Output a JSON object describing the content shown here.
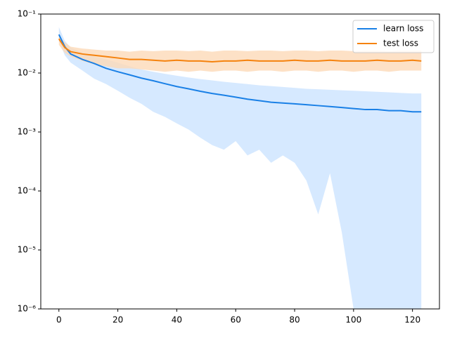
{
  "chart_data": {
    "type": "line",
    "x": [
      0,
      2,
      4,
      8,
      12,
      16,
      20,
      24,
      28,
      32,
      36,
      40,
      44,
      48,
      52,
      56,
      60,
      64,
      68,
      72,
      76,
      80,
      84,
      88,
      92,
      96,
      100,
      104,
      108,
      112,
      116,
      120,
      123
    ],
    "series": [
      {
        "name": "learn loss",
        "color": "#1a80e6",
        "band_color": "#cce4ff",
        "values": [
          0.045,
          0.028,
          0.021,
          0.017,
          0.0145,
          0.012,
          0.0105,
          0.0093,
          0.0082,
          0.0074,
          0.0066,
          0.0059,
          0.0054,
          0.0049,
          0.0045,
          0.0042,
          0.0039,
          0.0036,
          0.0034,
          0.0032,
          0.0031,
          0.003,
          0.0029,
          0.0028,
          0.0027,
          0.0026,
          0.0025,
          0.0024,
          0.0024,
          0.0023,
          0.0023,
          0.0022,
          0.0022
        ],
        "lower": [
          0.035,
          0.02,
          0.015,
          0.011,
          0.008,
          0.0065,
          0.005,
          0.0038,
          0.003,
          0.0022,
          0.0018,
          0.0014,
          0.0011,
          0.0008,
          0.0006,
          0.0005,
          0.0007,
          0.0004,
          0.0005,
          0.0003,
          0.0004,
          0.0003,
          0.00015,
          4e-05,
          0.0002,
          2e-05,
          1e-06,
          1e-06,
          1e-06,
          1e-06,
          1e-06,
          1e-06,
          1e-06
        ],
        "upper": [
          0.06,
          0.035,
          0.027,
          0.022,
          0.019,
          0.017,
          0.015,
          0.013,
          0.0115,
          0.0105,
          0.0097,
          0.009,
          0.0084,
          0.0079,
          0.0075,
          0.0071,
          0.0068,
          0.0065,
          0.0062,
          0.006,
          0.0058,
          0.0056,
          0.0054,
          0.0053,
          0.0052,
          0.0051,
          0.005,
          0.0049,
          0.0048,
          0.0047,
          0.0046,
          0.0045,
          0.0045
        ]
      },
      {
        "name": "test loss",
        "color": "#f5820d",
        "band_color": "#fdd9b8",
        "values": [
          0.038,
          0.027,
          0.023,
          0.021,
          0.02,
          0.019,
          0.018,
          0.017,
          0.017,
          0.0165,
          0.016,
          0.0165,
          0.016,
          0.016,
          0.0155,
          0.016,
          0.016,
          0.0165,
          0.016,
          0.016,
          0.016,
          0.0165,
          0.016,
          0.016,
          0.0165,
          0.016,
          0.016,
          0.016,
          0.0165,
          0.016,
          0.016,
          0.0165,
          0.016
        ],
        "lower": [
          0.03,
          0.022,
          0.019,
          0.016,
          0.014,
          0.013,
          0.012,
          0.012,
          0.0115,
          0.011,
          0.0105,
          0.011,
          0.0105,
          0.011,
          0.0105,
          0.011,
          0.011,
          0.0105,
          0.011,
          0.011,
          0.0105,
          0.011,
          0.011,
          0.0105,
          0.011,
          0.011,
          0.0105,
          0.011,
          0.011,
          0.0105,
          0.011,
          0.011,
          0.011
        ],
        "upper": [
          0.042,
          0.033,
          0.028,
          0.026,
          0.025,
          0.024,
          0.024,
          0.023,
          0.024,
          0.0235,
          0.024,
          0.024,
          0.0235,
          0.024,
          0.023,
          0.024,
          0.024,
          0.0235,
          0.024,
          0.024,
          0.0235,
          0.024,
          0.024,
          0.0235,
          0.024,
          0.024,
          0.0235,
          0.024,
          0.024,
          0.0235,
          0.024,
          0.024,
          0.024
        ]
      }
    ],
    "xlim": [
      -6.15,
      129.15
    ],
    "xticks": [
      0,
      20,
      40,
      60,
      80,
      100,
      120
    ],
    "ylim": [
      1e-06,
      0.1
    ],
    "log_y": true,
    "yticks": [
      {
        "value": 1e-06,
        "label": "10⁻⁶"
      },
      {
        "value": 1e-05,
        "label": "10⁻⁵"
      },
      {
        "value": 0.0001,
        "label": "10⁻⁴"
      },
      {
        "value": 0.001,
        "label": "10⁻³"
      },
      {
        "value": 0.01,
        "label": "10⁻²"
      },
      {
        "value": 0.1,
        "label": "10⁻¹"
      }
    ],
    "legend": "upper right"
  }
}
